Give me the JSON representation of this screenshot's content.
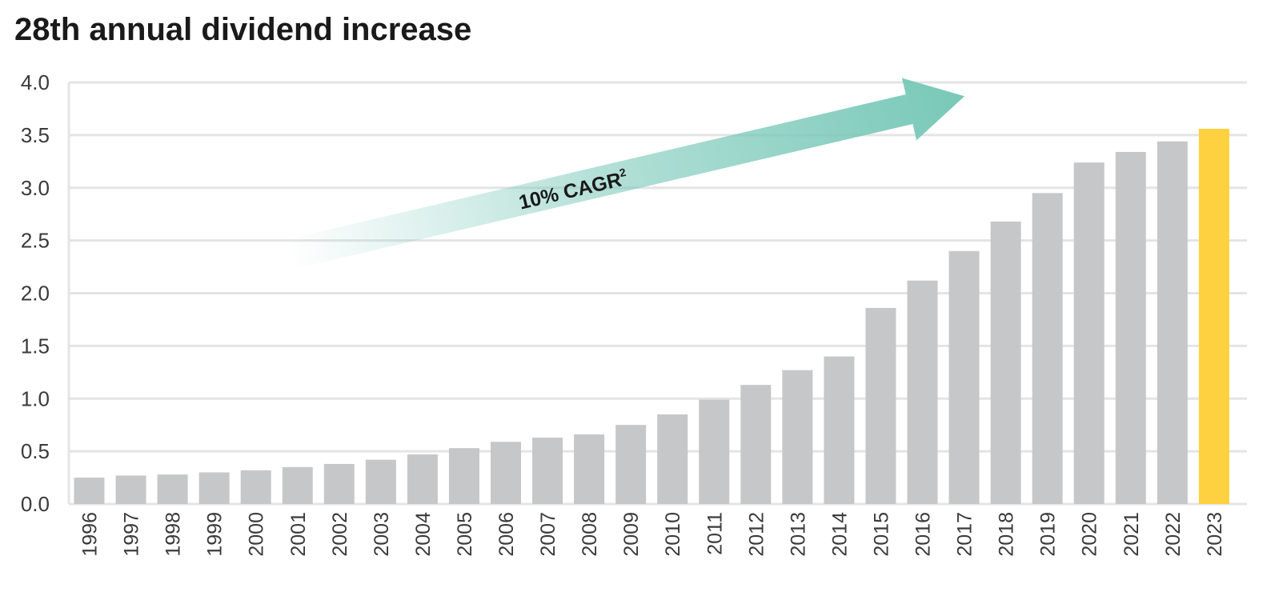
{
  "chart_data": {
    "type": "bar",
    "title": "28th annual dividend increase",
    "xlabel": "",
    "ylabel": "",
    "ylim": [
      0,
      4
    ],
    "yticks": [
      "0.0",
      "0.5",
      "1.0",
      "1.5",
      "2.0",
      "2.5",
      "3.0",
      "3.5",
      "4.0"
    ],
    "ytick_values": [
      0,
      0.5,
      1.0,
      1.5,
      2.0,
      2.5,
      3.0,
      3.5,
      4.0
    ],
    "grid": true,
    "categories": [
      "1996",
      "1997",
      "1998",
      "1999",
      "2000",
      "2001",
      "2002",
      "2003",
      "2004",
      "2005",
      "2006",
      "2007",
      "2008",
      "2009",
      "2010",
      "2011",
      "2012",
      "2013",
      "2014",
      "2015",
      "2016",
      "2017",
      "2018",
      "2019",
      "2020",
      "2021",
      "2022",
      "2023"
    ],
    "values": [
      0.25,
      0.27,
      0.28,
      0.3,
      0.32,
      0.35,
      0.38,
      0.42,
      0.47,
      0.53,
      0.59,
      0.63,
      0.66,
      0.75,
      0.85,
      0.99,
      1.13,
      1.27,
      1.4,
      1.86,
      2.12,
      2.4,
      2.68,
      2.95,
      3.24,
      3.34,
      3.44,
      3.56
    ],
    "highlight_index": 27,
    "annotation": {
      "text": "10% CAGR",
      "superscript": "2"
    },
    "colors": {
      "bar": "#c6c7c8",
      "highlight": "#fdd13f",
      "grid": "#e4e4e4",
      "arrow": "#78c8b8",
      "text": "#1a1a1a",
      "tick": "#3a3a3a"
    }
  }
}
